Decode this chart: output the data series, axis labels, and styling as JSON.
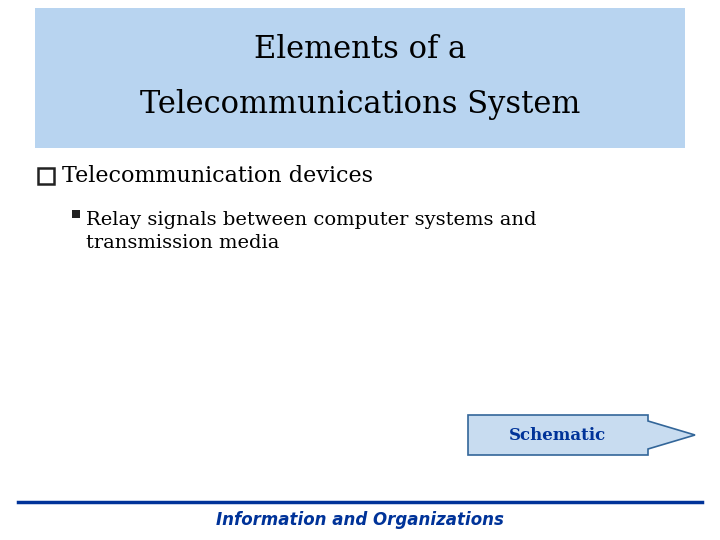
{
  "title_line1": "Elements of a",
  "title_line2": "Telecommunications System",
  "title_bg_color": "#b8d4f0",
  "title_text_color": "#000000",
  "bg_color": "#ffffff",
  "bullet1_text": "Telecommunication devices",
  "bullet2_line1": "Relay signals between computer systems and",
  "bullet2_line2": "transmission media",
  "footer_text": "Information and Organizations",
  "footer_color": "#003399",
  "footer_line_color": "#003399",
  "schematic_text": "Schematic",
  "schematic_fill_color": "#c8dcf0",
  "schematic_border_color": "#336699",
  "schematic_text_color": "#003399"
}
